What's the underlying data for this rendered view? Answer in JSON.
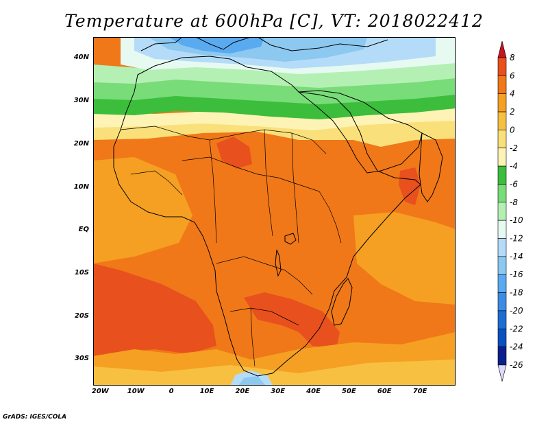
{
  "title": "Temperature at 600hPa [C], VT: 2018022412",
  "credit": "GrADS: IGES/COLA",
  "map": {
    "lon_range": [
      -22,
      80
    ],
    "lat_range": [
      -36,
      45
    ],
    "lat_ticks": [
      {
        "value": 40,
        "label": "40N"
      },
      {
        "value": 30,
        "label": "30N"
      },
      {
        "value": 20,
        "label": "20N"
      },
      {
        "value": 10,
        "label": "10N"
      },
      {
        "value": 0,
        "label": "EQ"
      },
      {
        "value": -10,
        "label": "10S"
      },
      {
        "value": -20,
        "label": "20S"
      },
      {
        "value": -30,
        "label": "30S"
      }
    ],
    "lon_ticks": [
      {
        "value": -20,
        "label": "20W"
      },
      {
        "value": -10,
        "label": "10W"
      },
      {
        "value": 0,
        "label": "0"
      },
      {
        "value": 10,
        "label": "10E"
      },
      {
        "value": 20,
        "label": "20E"
      },
      {
        "value": 30,
        "label": "30E"
      },
      {
        "value": 40,
        "label": "40E"
      },
      {
        "value": 50,
        "label": "50E"
      },
      {
        "value": 60,
        "label": "60E"
      },
      {
        "value": 70,
        "label": "70E"
      }
    ]
  },
  "colorbar": {
    "levels": [
      {
        "label": "8",
        "color": "#c8141e"
      },
      {
        "label": "6",
        "color": "#e8501e"
      },
      {
        "label": "4",
        "color": "#f07818"
      },
      {
        "label": "2",
        "color": "#f5a023"
      },
      {
        "label": "0",
        "color": "#f8c040"
      },
      {
        "label": "-2",
        "color": "#fae07a"
      },
      {
        "label": "-4",
        "color": "#fdf3b4"
      },
      {
        "label": "-6",
        "color": "#3cbe3c"
      },
      {
        "label": "-8",
        "color": "#78dc78"
      },
      {
        "label": "-10",
        "color": "#b4f0b4"
      },
      {
        "label": "-12",
        "color": "#e6faf2"
      },
      {
        "label": "-14",
        "color": "#b4dcf8"
      },
      {
        "label": "-16",
        "color": "#8cc8f0"
      },
      {
        "label": "-18",
        "color": "#5aaaf0"
      },
      {
        "label": "-20",
        "color": "#3c8ce6"
      },
      {
        "label": "-22",
        "color": "#1e6ed2"
      },
      {
        "label": "-24",
        "color": "#0a50be"
      },
      {
        "label": "-26",
        "color": "#0a1e8c"
      }
    ],
    "top_arrow_color": "#c8141e",
    "bottom_arrow_color": "#dcdcfa"
  },
  "field_colors": {
    "very_warm": "#e8501e",
    "warm": "#f07818",
    "mild": "#f5a023",
    "zero": "#f8c040",
    "cool": "#fae07a",
    "pale": "#fdf3b4",
    "green_dark": "#3cbe3c",
    "green": "#78dc78",
    "green_pale": "#b4f0b4",
    "ice": "#e6faf2",
    "blue_pale": "#b4dcf8",
    "blue": "#8cc8f0",
    "blue_mid": "#5aaaf0"
  }
}
